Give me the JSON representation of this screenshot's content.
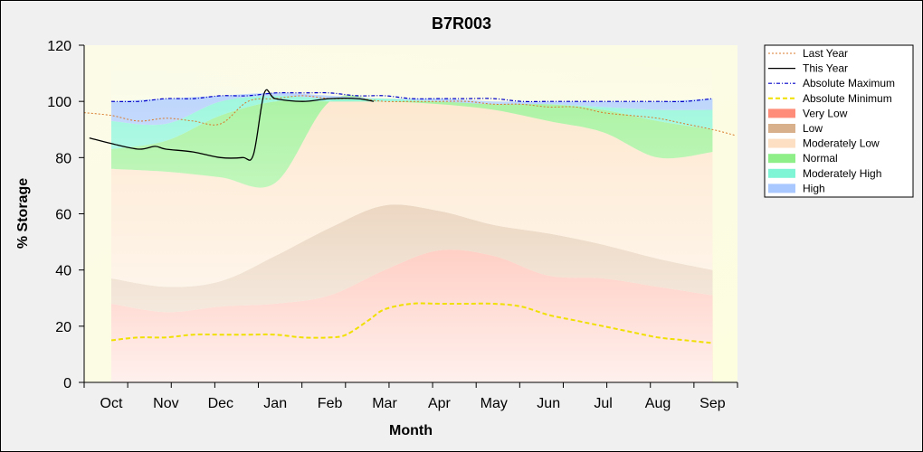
{
  "chart_data": {
    "type": "area",
    "title": "B7R003",
    "xlabel": "Month",
    "ylabel": "% Storage",
    "ylim": [
      0,
      120
    ],
    "yticks": [
      0,
      20,
      40,
      60,
      80,
      100,
      120
    ],
    "categories": [
      "Oct",
      "Nov",
      "Dec",
      "Jan",
      "Feb",
      "Mar",
      "Apr",
      "May",
      "Jun",
      "Jul",
      "Aug",
      "Sep"
    ],
    "legend_position": "right",
    "grid": false,
    "x_month": [
      0,
      1,
      2,
      3,
      4,
      5,
      6,
      7,
      8,
      9,
      10,
      11
    ],
    "bands": [
      {
        "name": "Very Low",
        "color": "#ff8c78",
        "lower": [
          0,
          0,
          0,
          0,
          0,
          0,
          0,
          0,
          0,
          0,
          0,
          0
        ],
        "upper": [
          28,
          25,
          27,
          28,
          31,
          40,
          47,
          45,
          38,
          37,
          34,
          31
        ]
      },
      {
        "name": "Low",
        "color": "#d9b08c",
        "lower": [
          28,
          25,
          27,
          28,
          31,
          40,
          47,
          45,
          38,
          37,
          34,
          31
        ],
        "upper": [
          37,
          34,
          36,
          45,
          55,
          63,
          61,
          56,
          53,
          49,
          44,
          40
        ]
      },
      {
        "name": "Moderately Low",
        "color": "#fde0c4",
        "lower": [
          37,
          34,
          36,
          45,
          55,
          63,
          61,
          56,
          53,
          49,
          44,
          40
        ],
        "upper": [
          76,
          75,
          73,
          71,
          100,
          100,
          99,
          97,
          93,
          89,
          80,
          82
        ]
      },
      {
        "name": "Normal",
        "color": "#8eee88",
        "lower": [
          76,
          75,
          73,
          71,
          100,
          100,
          99,
          97,
          93,
          89,
          80,
          82
        ],
        "upper": [
          83,
          86,
          95,
          100,
          100,
          100,
          100,
          99,
          99,
          97,
          93,
          90
        ]
      },
      {
        "name": "Moderately High",
        "color": "#7ff5d6",
        "lower": [
          83,
          86,
          95,
          100,
          100,
          100,
          100,
          99,
          99,
          97,
          93,
          90
        ],
        "upper": [
          93,
          92,
          100,
          102,
          101,
          101,
          100,
          99,
          99,
          98,
          97,
          97
        ]
      },
      {
        "name": "High",
        "color": "#a8c8ff",
        "lower": [
          93,
          92,
          100,
          102,
          101,
          101,
          100,
          99,
          99,
          98,
          97,
          97
        ],
        "upper": [
          100,
          101,
          102,
          103,
          102,
          101,
          101,
          100,
          100,
          100,
          100,
          101
        ]
      }
    ],
    "series": [
      {
        "name": "Last Year",
        "style": "dotted",
        "color": "#d97a2b",
        "x": [
          -0.5,
          0,
          0.5,
          1,
          1.5,
          2,
          2.5,
          3,
          3.5,
          4,
          4.5,
          5,
          5.5,
          6,
          6.5,
          7,
          7.5,
          8,
          8.5,
          9,
          9.5,
          10,
          10.5,
          11,
          11.4
        ],
        "y": [
          96,
          95,
          93,
          94,
          93,
          92,
          100,
          101,
          102,
          101,
          101,
          100,
          100,
          100,
          100,
          99,
          99,
          98,
          98,
          96,
          95,
          94,
          92,
          90,
          88
        ]
      },
      {
        "name": "This Year",
        "style": "solid",
        "color": "#000000",
        "x": [
          -0.4,
          0,
          0.5,
          0.8,
          1,
          1.5,
          2,
          2.4,
          2.6,
          2.8,
          3,
          3.5,
          4,
          4.5,
          4.8
        ],
        "y": [
          87,
          85,
          83,
          84,
          83,
          82,
          80,
          80,
          81,
          103,
          101,
          100,
          101,
          101,
          100
        ]
      },
      {
        "name": "Absolute Maximum",
        "style": "dashdot",
        "color": "#0000c8",
        "x": [
          0,
          0.5,
          1,
          1.5,
          2,
          2.5,
          3,
          3.5,
          4,
          4.5,
          5,
          5.5,
          6,
          6.5,
          7,
          7.5,
          8,
          8.5,
          9,
          9.5,
          10,
          10.5,
          11
        ],
        "y": [
          100,
          100,
          101,
          101,
          102,
          102,
          103,
          103,
          103,
          102,
          102,
          101,
          101,
          101,
          101,
          100,
          100,
          100,
          100,
          100,
          100,
          100,
          101
        ]
      },
      {
        "name": "Absolute Minimum",
        "style": "dashed",
        "color": "#f0e000",
        "x": [
          0,
          0.5,
          1,
          1.5,
          2,
          2.5,
          3,
          3.5,
          4,
          4.3,
          4.7,
          5,
          5.5,
          6,
          6.5,
          7,
          7.5,
          8,
          8.5,
          9,
          9.5,
          10,
          10.5,
          11
        ],
        "y": [
          15,
          16,
          16,
          17,
          17,
          17,
          17,
          16,
          16,
          17,
          22,
          26,
          28,
          28,
          28,
          28,
          27,
          24,
          22,
          20,
          18,
          16,
          15,
          14
        ]
      }
    ],
    "legend": [
      "Last Year",
      "This Year",
      "Absolute Maximum",
      "Absolute Minimum",
      "Very Low",
      "Low",
      "Moderately Low",
      "Normal",
      "Moderately High",
      "High"
    ]
  }
}
